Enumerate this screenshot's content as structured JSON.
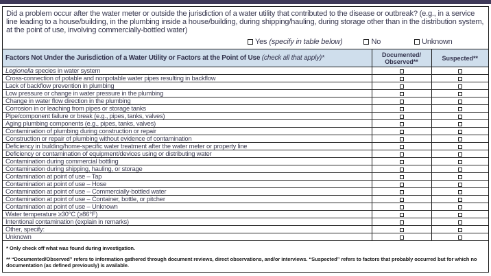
{
  "colors": {
    "top_bar": "#3f3959",
    "table_header_bg": "#cfdeec",
    "text": "#383850"
  },
  "question": {
    "text": "Did a problem occur after the water meter or outside the jurisdiction of a water utility that contributed to the disease or outbreak? (e.g., in a service line leading to a house/building, in the plumbing inside a house/building, during shipping/hauling, during storage other than in the distribution system, at the point of use, involving commercially-bottled water)",
    "options": [
      {
        "label": "Yes",
        "note": "(specify in table below)",
        "checked": false
      },
      {
        "label": "No",
        "checked": false
      },
      {
        "label": "Unknown",
        "checked": false
      }
    ]
  },
  "table": {
    "header": {
      "factors_bold": "Factors Not Under the Jurisdiction of a Water Utility or Factors at the Point of Use ",
      "factors_italic": "(check all that apply)*",
      "col1_line1": "Documented/",
      "col1_line2": "Observed**",
      "col2": "Suspected**"
    },
    "rows": [
      {
        "italic_lead": "Legionella",
        "text": " species in water system",
        "documented": false,
        "suspected": false
      },
      {
        "text": "Cross-connection of potable and nonpotable water pipes resulting in backflow",
        "documented": false,
        "suspected": false
      },
      {
        "text": "Lack of backflow prevention in plumbing",
        "documented": false,
        "suspected": false
      },
      {
        "text": "Low pressure or change in water pressure in the plumbing",
        "documented": false,
        "suspected": false
      },
      {
        "text": "Change in water flow direction in the plumbing",
        "documented": false,
        "suspected": false
      },
      {
        "text": "Corrosion in or leaching from pipes or storage tanks",
        "documented": false,
        "suspected": false
      },
      {
        "text": "Pipe/component failure or break (e.g., pipes, tanks, valves)",
        "documented": false,
        "suspected": false
      },
      {
        "text": "Aging plumbing components (e.g., pipes, tanks, valves)",
        "documented": false,
        "suspected": false
      },
      {
        "text": "Contamination of plumbing during construction or repair",
        "documented": false,
        "suspected": false
      },
      {
        "text": "Construction or repair of plumbing without evidence of contamination",
        "documented": false,
        "suspected": false
      },
      {
        "text": "Deficiency in building/home-specific water treatment after the water meter or property line",
        "documented": false,
        "suspected": false
      },
      {
        "text": "Deficiency or contamination of equipment/devices using or distributing water",
        "documented": false,
        "suspected": false
      },
      {
        "text": "Contamination during commercial bottling",
        "documented": false,
        "suspected": false
      },
      {
        "text": "Contamination during shipping, hauling, or storage",
        "documented": false,
        "suspected": false
      },
      {
        "text": "Contamination at point of use – Tap",
        "documented": false,
        "suspected": false
      },
      {
        "text": "Contamination at point of use – Hose",
        "documented": false,
        "suspected": false
      },
      {
        "text": "Contamination at point of use – Commercially-bottled water",
        "documented": false,
        "suspected": false
      },
      {
        "text": "Contamination at point of use – Container, bottle, or pitcher",
        "documented": false,
        "suspected": false
      },
      {
        "text": "Contamination at point of use – Unknown",
        "documented": false,
        "suspected": false
      },
      {
        "text": "Water temperature ≥30°C (≥86°F)",
        "documented": false,
        "suspected": false
      },
      {
        "text": "Intentional contamination (explain in remarks)",
        "documented": false,
        "suspected": false
      },
      {
        "text": "Other, specify:",
        "documented": false,
        "suspected": false
      },
      {
        "text": "Unknown",
        "documented": false,
        "suspected": false
      }
    ]
  },
  "footnotes": [
    "* Only check off what was found during investigation.",
    "** “Documented/Observed” refers to information gathered through document reviews, direct observations, and/or interviews. “Suspected” refers to factors that probably occurred but for which no documentation (as defined previously) is available."
  ]
}
